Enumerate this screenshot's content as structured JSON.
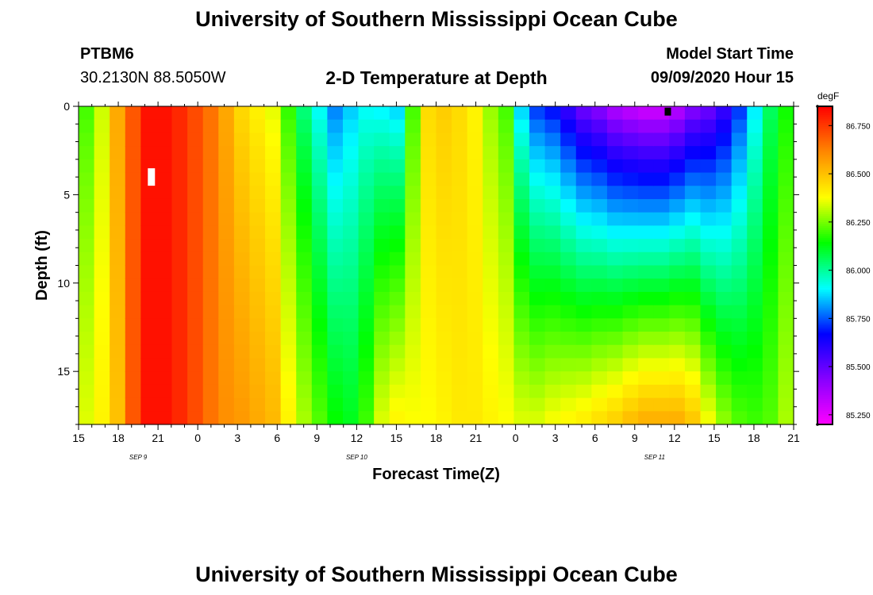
{
  "header": {
    "title": "University of Southern Mississippi Ocean Cube",
    "station": "PTBM6",
    "coords": "30.2130N 88.5050W",
    "plot_title": "2-D Temperature at Depth",
    "model_label": "Model Start Time",
    "model_start": "09/09/2020 Hour 15"
  },
  "footer": {
    "title": "University of Southern Mississippi Ocean Cube"
  },
  "chart_data": {
    "type": "heatmap",
    "title": "2-D Temperature at Depth",
    "xlabel": "Forecast Time(Z)",
    "ylabel": "Depth (ft)",
    "x_range": [
      0,
      54
    ],
    "y_range": [
      0,
      18
    ],
    "x_tick_values": [
      0,
      3,
      6,
      9,
      12,
      15,
      18,
      21,
      24,
      27,
      30,
      33,
      36,
      39,
      42,
      45,
      48,
      51,
      54
    ],
    "x_tick_labels": [
      "15",
      "18",
      "21",
      "0",
      "3",
      "6",
      "9",
      "12",
      "15",
      "18",
      "21",
      "0",
      "3",
      "6",
      "9",
      "12",
      "15",
      "18",
      "21"
    ],
    "date_labels": [
      {
        "x": 4.5,
        "text": "SEP 9"
      },
      {
        "x": 21,
        "text": "SEP 10"
      },
      {
        "x": 43.5,
        "text": "SEP 11"
      }
    ],
    "y_ticks": [
      0,
      5,
      10,
      15
    ],
    "colorbar": {
      "unit": "degF",
      "min": 85.2,
      "max": 86.85,
      "tick_values": [
        85.25,
        85.5,
        85.75,
        86.0,
        86.25,
        86.5,
        86.75
      ],
      "tick_labels": [
        "85.250",
        "85.500",
        "85.750",
        "86.000",
        "86.250",
        "86.500",
        "86.750"
      ],
      "colors": [
        "#ff00ff",
        "#8800ff",
        "#0000ff",
        "#00ffff",
        "#00ff00",
        "#ffff00",
        "#ff8800",
        "#ff0000"
      ]
    },
    "surface_profile_degF": [
      86.2,
      86.33,
      86.55,
      86.7,
      86.82,
      86.82,
      86.78,
      86.72,
      86.65,
      86.55,
      86.45,
      86.4,
      86.35,
      86.18,
      86.02,
      85.9,
      85.78,
      85.85,
      85.9,
      85.88,
      85.85,
      86.2,
      86.45,
      86.48,
      86.45,
      86.4,
      86.28,
      86.2,
      85.85,
      85.7,
      85.65,
      85.55,
      85.45,
      85.4,
      85.32,
      85.28,
      85.25,
      85.25,
      85.3,
      85.4,
      85.45,
      85.55,
      85.7,
      85.88,
      86.05,
      86.15
    ],
    "bottom_profile_degF": [
      86.35,
      86.4,
      86.5,
      86.7,
      86.82,
      86.82,
      86.78,
      86.72,
      86.65,
      86.6,
      86.58,
      86.55,
      86.52,
      86.4,
      86.3,
      86.22,
      86.15,
      86.12,
      86.2,
      86.35,
      86.4,
      86.38,
      86.38,
      86.4,
      86.42,
      86.42,
      86.4,
      86.38,
      86.35,
      86.35,
      86.38,
      86.4,
      86.42,
      86.45,
      86.48,
      86.52,
      86.55,
      86.55,
      86.55,
      86.5,
      86.38,
      86.28,
      86.22,
      86.2,
      86.22,
      86.3
    ],
    "markers": [
      {
        "type": "missing-data",
        "color": "#ffffff",
        "x": 5.5,
        "depth": 4
      },
      {
        "type": "missing-data",
        "color": "#000000",
        "x": 44.5,
        "depth": 0.3
      }
    ]
  }
}
